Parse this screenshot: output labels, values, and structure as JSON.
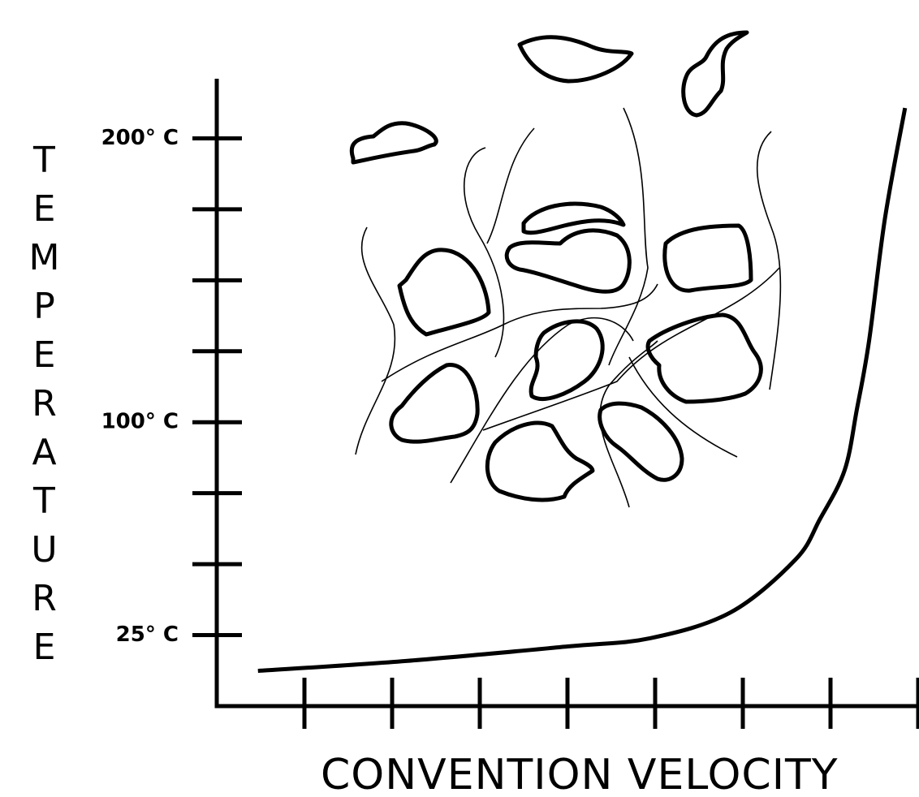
{
  "chart_data": {
    "type": "line",
    "ylabel": "TEMPERATURE",
    "xlabel": "CONVENTION VELOCITY",
    "ylim": [
      0,
      221
    ],
    "yticks": [
      {
        "value": 200,
        "label": "200° C"
      },
      {
        "value": 100,
        "label": "100° C"
      },
      {
        "value": 25,
        "label": "25° C"
      }
    ],
    "yminor_ticks": [
      175,
      150,
      125,
      75,
      50
    ],
    "xlim": [
      0,
      8
    ],
    "xtick_marks": [
      1,
      2,
      3,
      4,
      5,
      6,
      7,
      8
    ],
    "color": "#000000",
    "x": [
      0.47,
      2.16,
      4.0,
      4.94,
      5.86,
      6.6,
      6.88,
      7.16,
      7.3,
      7.44,
      7.62,
      7.85
    ],
    "values": [
      12.4,
      15.9,
      21,
      23.9,
      33,
      51.6,
      65.9,
      83,
      104.4,
      128.7,
      171.6,
      210.7
    ]
  }
}
